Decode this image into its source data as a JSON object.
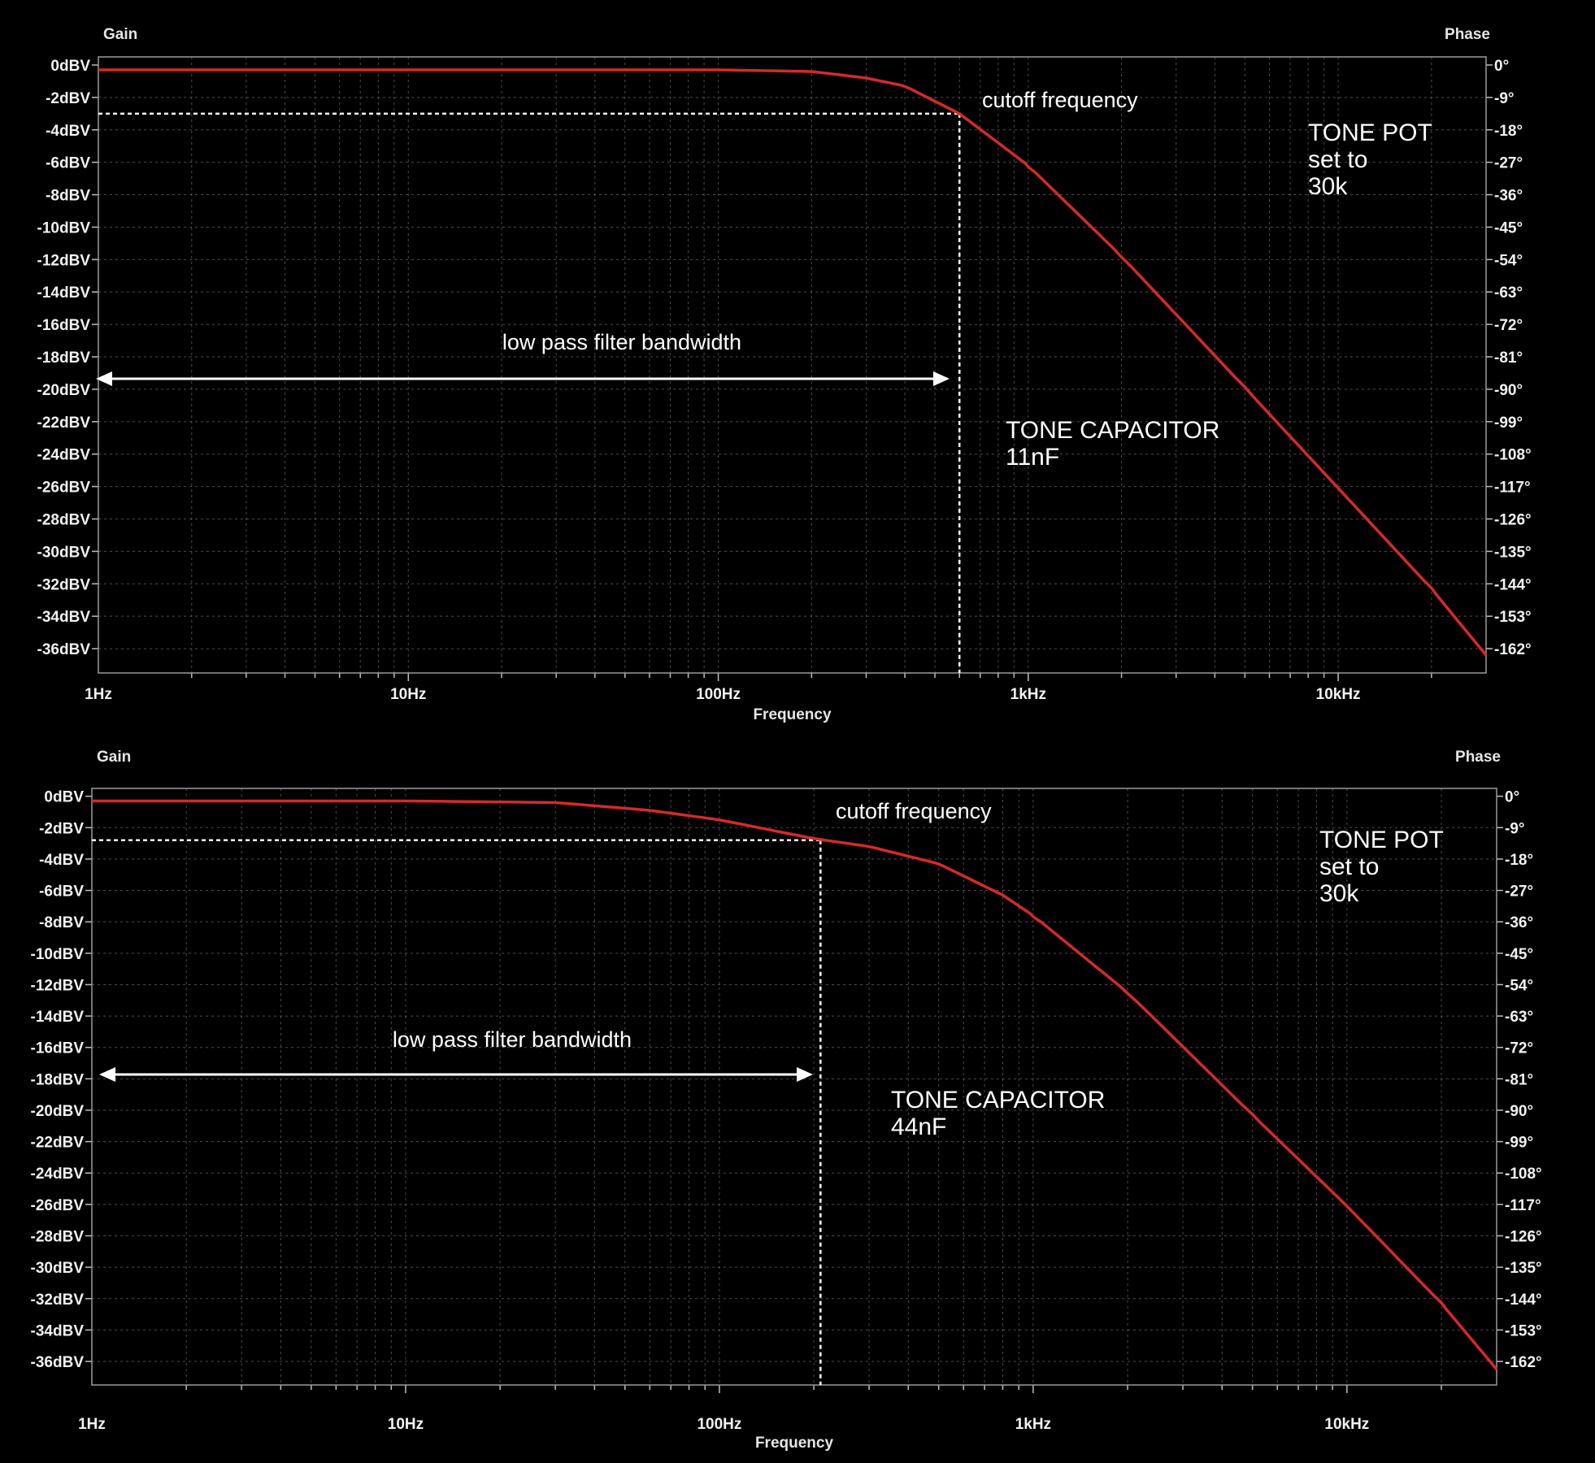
{
  "chart_data": [
    {
      "type": "line",
      "title": "",
      "xlabel": "Frequency",
      "ylabel": "Gain",
      "y2label": "Phase",
      "x_scale": "log",
      "xlim": [
        1,
        30000
      ],
      "ylim": [
        -37.5,
        0.5
      ],
      "x_ticks": [
        "1Hz",
        "10Hz",
        "100Hz",
        "1kHz",
        "10kHz"
      ],
      "y_ticks": [
        "0dBV",
        "-2dBV",
        "-4dBV",
        "-6dBV",
        "-8dBV",
        "-10dBV",
        "-12dBV",
        "-14dBV",
        "-16dBV",
        "-18dBV",
        "-20dBV",
        "-22dBV",
        "-24dBV",
        "-26dBV",
        "-28dBV",
        "-30dBV",
        "-32dBV",
        "-34dBV",
        "-36dBV"
      ],
      "y2_ticks": [
        "0°",
        "-9°",
        "-18°",
        "-27°",
        "-36°",
        "-45°",
        "-54°",
        "-63°",
        "-72°",
        "-81°",
        "-90°",
        "-99°",
        "-108°",
        "-117°",
        "-126°",
        "-135°",
        "-144°",
        "-153°",
        "-162°"
      ],
      "series": [
        {
          "color": "#d42a2a",
          "x": [
            1,
            10,
            50,
            100,
            200,
            300,
            400,
            600,
            800,
            1000,
            2000,
            5000,
            10000,
            20000,
            30000
          ],
          "y": [
            -0.3,
            -0.3,
            -0.3,
            -0.3,
            -0.4,
            -0.8,
            -1.3,
            -3,
            -4.8,
            -6.2,
            -11.8,
            -19.9,
            -26.1,
            -32.3,
            -36.4
          ]
        }
      ],
      "cutoff": {
        "x": 600,
        "y": -3
      },
      "annotations": {
        "cutoff_label": "cutoff frequency",
        "bandwidth_label": "low pass filter bandwidth",
        "pot_line1": "TONE POT",
        "pot_line2": "set to",
        "pot_line3": "30k",
        "cap_line1": "TONE CAPACITOR",
        "cap_line2": "11nF"
      },
      "grid": true
    },
    {
      "type": "line",
      "title": "",
      "xlabel": "Frequency",
      "ylabel": "Gain",
      "y2label": "Phase",
      "x_scale": "log",
      "xlim": [
        1,
        30000
      ],
      "ylim": [
        -37.5,
        0.5
      ],
      "x_ticks": [
        "1Hz",
        "10Hz",
        "100Hz",
        "1kHz",
        "10kHz"
      ],
      "y_ticks": [
        "0dBV",
        "-2dBV",
        "-4dBV",
        "-6dBV",
        "-8dBV",
        "-10dBV",
        "-12dBV",
        "-14dBV",
        "-16dBV",
        "-18dBV",
        "-20dBV",
        "-22dBV",
        "-24dBV",
        "-26dBV",
        "-28dBV",
        "-30dBV",
        "-32dBV",
        "-34dBV",
        "-36dBV"
      ],
      "y2_ticks": [
        "0°",
        "-9°",
        "-18°",
        "-27°",
        "-36°",
        "-45°",
        "-54°",
        "-63°",
        "-72°",
        "-81°",
        "-90°",
        "-99°",
        "-108°",
        "-117°",
        "-126°",
        "-135°",
        "-144°",
        "-153°",
        "-162°"
      ],
      "series": [
        {
          "color": "#d42a2a",
          "x": [
            1,
            10,
            30,
            60,
            100,
            200,
            300,
            500,
            800,
            1000,
            2000,
            5000,
            10000,
            20000,
            30000
          ],
          "y": [
            -0.3,
            -0.3,
            -0.4,
            -0.9,
            -1.5,
            -2.7,
            -3.2,
            -4.3,
            -6.3,
            -7.6,
            -12.5,
            -20.3,
            -26.1,
            -32.3,
            -36.5
          ]
        }
      ],
      "cutoff": {
        "x": 210,
        "y": -2.8
      },
      "annotations": {
        "cutoff_label": "cutoff frequency",
        "bandwidth_label": "low pass filter bandwidth",
        "pot_line1": "TONE POT",
        "pot_line2": "set to",
        "pot_line3": "30k",
        "cap_line1": "TONE CAPACITOR",
        "cap_line2": "44nF"
      },
      "grid": true
    }
  ]
}
